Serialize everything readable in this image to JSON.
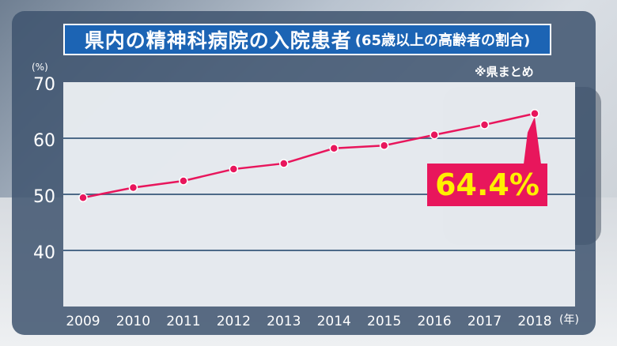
{
  "title": {
    "main": "県内の精神科病院の入院患者",
    "sub": "(65歳以上の高齢者の割合)"
  },
  "note": "※県まとめ",
  "y_unit": "(%)",
  "x_unit": "(年)",
  "callout": {
    "label": "64.4%",
    "color": "#e8165c",
    "text_color": "#ffef00"
  },
  "colors": {
    "panel": "#3e546e",
    "title_bg": "#1c64b4",
    "line": "#e8165c",
    "plot_bg": "#f0f3f6",
    "gridline": "#4d6a88"
  },
  "chart_data": {
    "type": "line",
    "title": "県内の精神科病院の入院患者(65歳以上の高齢者の割合)",
    "xlabel": "(年)",
    "ylabel": "(%)",
    "x": [
      "2009",
      "2010",
      "2011",
      "2012",
      "2013",
      "2014",
      "2015",
      "2016",
      "2017",
      "2018"
    ],
    "series": [
      {
        "values": [
          49.4,
          51.2,
          52.4,
          54.5,
          55.5,
          58.2,
          58.7,
          60.6,
          62.4,
          64.4
        ]
      }
    ],
    "ylim": [
      30,
      70
    ],
    "yticks": [
      40,
      50,
      60,
      70
    ],
    "grid": true,
    "annotations": [
      "64.4%"
    ]
  }
}
